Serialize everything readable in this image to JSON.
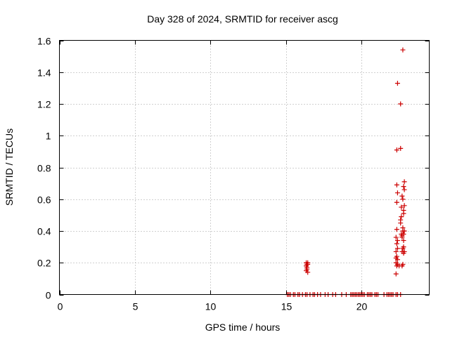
{
  "chart_data": {
    "type": "scatter",
    "title": "Day 328 of 2024, SRMTID for receiver ascg",
    "xlabel": "GPS time / hours",
    "ylabel": "SRMTID / TECUs",
    "xlim": [
      0,
      24.5
    ],
    "ylim": [
      0,
      1.6
    ],
    "xticks": [
      0,
      5,
      10,
      15,
      20
    ],
    "yticks": [
      0,
      0.2,
      0.4,
      0.6,
      0.8,
      1.0,
      1.2,
      1.4,
      1.6
    ],
    "xtick_labels": [
      "0",
      "5",
      "10",
      "15",
      "20"
    ],
    "ytick_labels": [
      "0",
      "0.2",
      "0.4",
      "0.6",
      "0.8",
      "1",
      "1.2",
      "1.4",
      "1.6"
    ],
    "grid": true,
    "marker": "+",
    "color": "#cc0000",
    "points": [
      [
        15.1,
        0
      ],
      [
        15.2,
        0
      ],
      [
        15.3,
        0
      ],
      [
        15.5,
        0
      ],
      [
        15.6,
        0
      ],
      [
        15.8,
        0
      ],
      [
        15.9,
        0
      ],
      [
        16.1,
        0
      ],
      [
        16.3,
        0
      ],
      [
        16.4,
        0
      ],
      [
        16.6,
        0
      ],
      [
        16.8,
        0
      ],
      [
        16.9,
        0
      ],
      [
        17.1,
        0
      ],
      [
        17.3,
        0
      ],
      [
        17.6,
        0
      ],
      [
        17.8,
        0
      ],
      [
        18.1,
        0
      ],
      [
        18.3,
        0
      ],
      [
        18.7,
        0
      ],
      [
        19.0,
        0
      ],
      [
        19.3,
        0
      ],
      [
        19.4,
        0
      ],
      [
        19.5,
        0
      ],
      [
        19.6,
        0
      ],
      [
        19.7,
        0
      ],
      [
        19.8,
        0
      ],
      [
        19.9,
        0
      ],
      [
        20.0,
        0
      ],
      [
        20.1,
        0
      ],
      [
        20.2,
        0
      ],
      [
        20.4,
        0
      ],
      [
        20.5,
        0
      ],
      [
        20.6,
        0
      ],
      [
        20.7,
        0
      ],
      [
        20.9,
        0
      ],
      [
        21.0,
        0
      ],
      [
        21.1,
        0
      ],
      [
        21.5,
        0
      ],
      [
        21.7,
        0
      ],
      [
        21.8,
        0
      ],
      [
        21.9,
        0
      ],
      [
        22.0,
        0
      ],
      [
        22.1,
        0
      ],
      [
        22.3,
        0
      ],
      [
        22.4,
        0
      ],
      [
        22.6,
        0
      ],
      [
        16.35,
        0.15
      ],
      [
        16.4,
        0.17
      ],
      [
        16.45,
        0.19
      ],
      [
        16.35,
        0.18
      ],
      [
        16.4,
        0.16
      ],
      [
        16.45,
        0.2
      ],
      [
        16.35,
        0.2
      ],
      [
        16.45,
        0.14
      ],
      [
        16.4,
        0.19
      ],
      [
        22.3,
        0.13
      ],
      [
        22.35,
        0.18
      ],
      [
        22.3,
        0.2
      ],
      [
        22.4,
        0.22
      ],
      [
        22.35,
        0.24
      ],
      [
        22.3,
        0.27
      ],
      [
        22.4,
        0.29
      ],
      [
        22.35,
        0.32
      ],
      [
        22.4,
        0.34
      ],
      [
        22.3,
        0.36
      ],
      [
        22.35,
        0.41
      ],
      [
        22.4,
        0.19
      ],
      [
        22.3,
        0.23
      ],
      [
        22.35,
        0.58
      ],
      [
        22.4,
        0.64
      ],
      [
        22.35,
        0.69
      ],
      [
        22.35,
        0.91
      ],
      [
        22.4,
        1.33
      ],
      [
        22.5,
        0.18
      ],
      [
        22.6,
        0.92
      ],
      [
        22.6,
        1.2
      ],
      [
        22.6,
        0.47
      ],
      [
        22.65,
        0.49
      ],
      [
        22.6,
        0.45
      ],
      [
        22.65,
        0.55
      ],
      [
        22.7,
        0.37
      ],
      [
        22.75,
        0.4
      ],
      [
        22.65,
        0.38
      ],
      [
        22.7,
        0.36
      ],
      [
        22.75,
        0.42
      ],
      [
        22.7,
        0.27
      ],
      [
        22.75,
        0.29
      ],
      [
        22.8,
        0.26
      ],
      [
        22.8,
        0.3
      ],
      [
        22.7,
        0.62
      ],
      [
        22.75,
        0.6
      ],
      [
        22.8,
        0.53
      ],
      [
        22.8,
        0.51
      ],
      [
        22.85,
        0.56
      ],
      [
        22.8,
        0.68
      ],
      [
        22.85,
        0.71
      ],
      [
        22.85,
        0.66
      ],
      [
        22.8,
        0.38
      ],
      [
        22.85,
        0.4
      ],
      [
        22.75,
        0.19
      ],
      [
        22.7,
        0.18
      ],
      [
        22.75,
        1.54
      ],
      [
        22.85,
        0.27
      ],
      [
        22.8,
        0.34
      ]
    ]
  }
}
